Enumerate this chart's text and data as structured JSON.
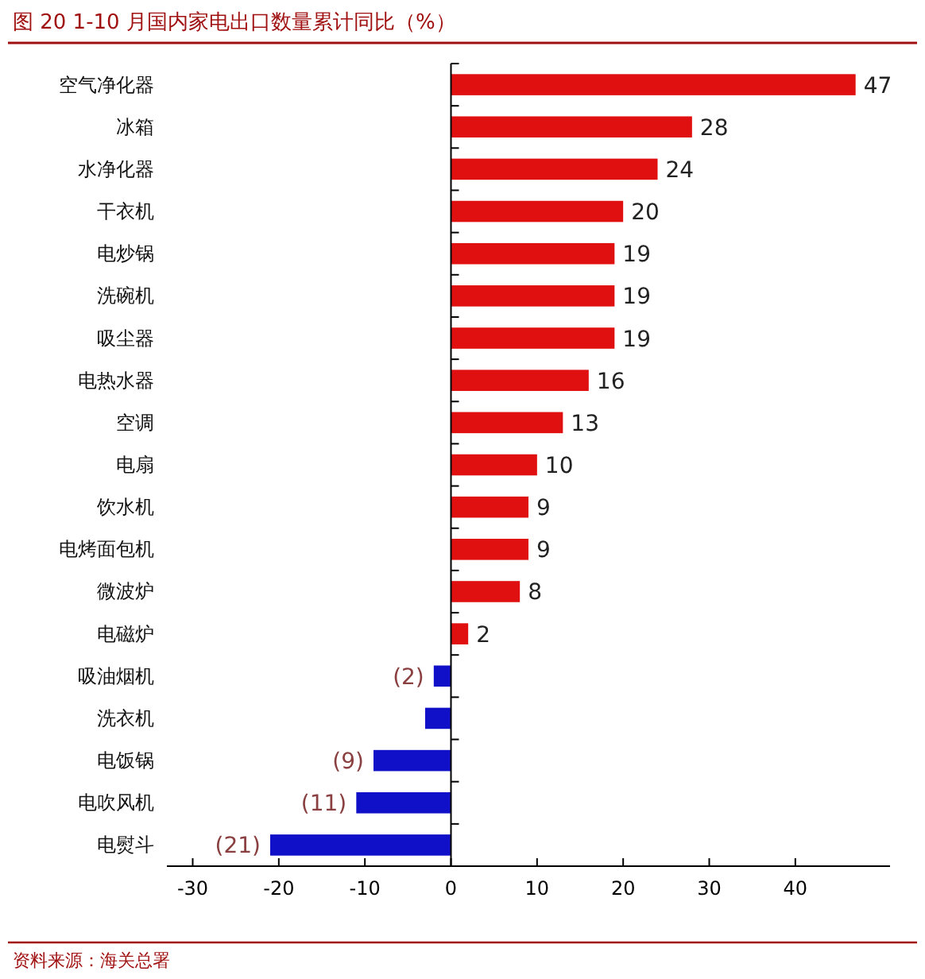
{
  "chart_data": {
    "type": "bar",
    "orientation": "horizontal",
    "title": "图 20  1-10 月国内家电出口数量累计同比（%）",
    "categories": [
      "空气净化器",
      "冰箱",
      "水净化器",
      "干衣机",
      "电炒锅",
      "洗碗机",
      "吸尘器",
      "电热水器",
      "空调",
      "电扇",
      "饮水机",
      "电烤面包机",
      "微波炉",
      "电磁炉",
      "吸油烟机",
      "洗衣机",
      "电饭锅",
      "电吹风机",
      "电熨斗"
    ],
    "values": [
      47,
      28,
      24,
      20,
      19,
      19,
      19,
      16,
      13,
      10,
      9,
      9,
      8,
      2,
      -2,
      -3,
      -9,
      -11,
      -21
    ],
    "colors": [
      "#e01010",
      "#e01010",
      "#e01010",
      "#e01010",
      "#e01010",
      "#e01010",
      "#e01010",
      "#e01010",
      "#e01010",
      "#e01010",
      "#e01010",
      "#e01010",
      "#e01010",
      "#e01010",
      "#1010c8",
      "#1010c8",
      "#1010c8",
      "#1010c8",
      "#1010c8"
    ],
    "value_labels": [
      "47",
      "28",
      "24",
      "20",
      "19",
      "19",
      "19",
      "16",
      "13",
      "10",
      "9",
      "9",
      "8",
      "2",
      "(2)",
      null,
      "(9)",
      "(11)",
      "(21)"
    ],
    "xlim": [
      -33,
      51
    ],
    "xticks": [
      -30,
      -20,
      -10,
      0,
      10,
      20,
      30,
      40
    ],
    "annotations": [
      "资料来源：海关总署"
    ]
  }
}
